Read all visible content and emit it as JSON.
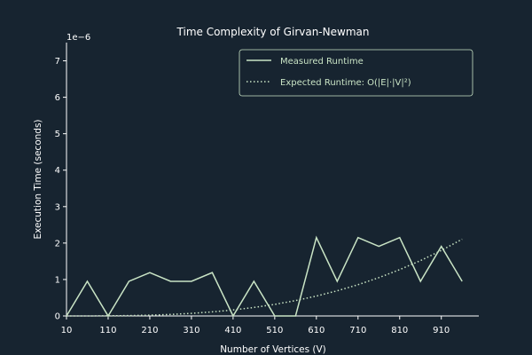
{
  "colors": {
    "background": "#172430",
    "measured_line": "#c9e4c5",
    "expected_line": "#c9e4c5",
    "axis": "#ffffff",
    "text": "#ffffff",
    "legend_text": "#c9e4c5",
    "legend_border": "#c9e4c5"
  },
  "chart_data": {
    "type": "line",
    "title": "Time Complexity of Girvan-Newman",
    "xlabel": "Number of Vertices (V)",
    "ylabel": "Execution Time (seconds)",
    "y_offset_label": "1e−6",
    "xlim": [
      10,
      1000
    ],
    "ylim": [
      0,
      7.5
    ],
    "x_ticks": [
      10,
      110,
      210,
      310,
      410,
      510,
      610,
      710,
      810,
      910
    ],
    "y_ticks": [
      0,
      1,
      2,
      3,
      4,
      5,
      6,
      7
    ],
    "legend_position": "upper right",
    "series": [
      {
        "name": "Measured Runtime",
        "style": "solid",
        "x": [
          10,
          60,
          110,
          160,
          210,
          260,
          310,
          360,
          410,
          460,
          510,
          560,
          610,
          660,
          710,
          760,
          810,
          860,
          910,
          960
        ],
        "values": [
          0,
          0.95,
          0,
          0.95,
          1.19,
          0.95,
          0.95,
          1.19,
          0,
          0.95,
          0,
          0,
          2.15,
          0.95,
          2.15,
          1.91,
          2.15,
          0.95,
          1.91,
          0.95
        ]
      },
      {
        "name": "Expected Runtime: O(|E|·|V|²)",
        "style": "dotted",
        "x": [
          10,
          60,
          110,
          160,
          210,
          260,
          310,
          360,
          410,
          460,
          510,
          560,
          610,
          660,
          710,
          760,
          810,
          860,
          910,
          960
        ],
        "values": [
          0,
          0.0005,
          0.0032,
          0.0098,
          0.022,
          0.042,
          0.071,
          0.112,
          0.165,
          0.233,
          0.318,
          0.422,
          0.545,
          0.69,
          0.858,
          1.051,
          1.271,
          1.519,
          1.797,
          2.106
        ]
      }
    ]
  }
}
